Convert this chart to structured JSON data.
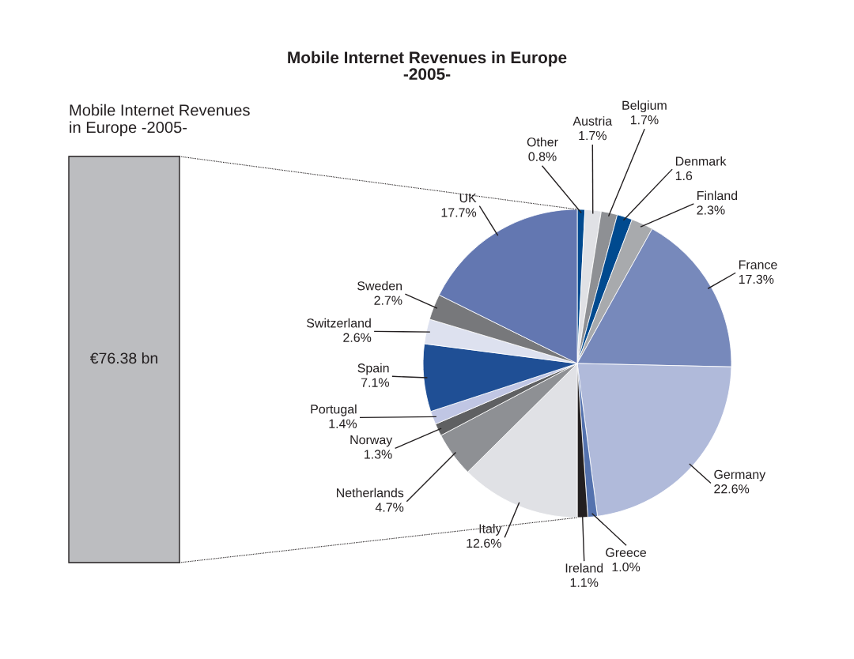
{
  "chart_data": {
    "type": "pie",
    "title": "Mobile Internet Revenues in Europe\n-2005-",
    "categories": [
      "Other",
      "Austria",
      "Belgium",
      "Denmark",
      "Finland",
      "France",
      "Germany",
      "Greece",
      "Ireland",
      "Italy",
      "Netherlands",
      "Norway",
      "Portugal",
      "Spain",
      "Switzerland",
      "Sweden",
      "UK"
    ],
    "values": [
      0.8,
      1.7,
      1.7,
      1.6,
      2.3,
      17.3,
      22.6,
      1.0,
      1.1,
      12.6,
      4.7,
      1.3,
      1.4,
      7.1,
      2.6,
      2.7,
      17.7
    ],
    "value_labels": [
      "0.8%",
      "1.7%",
      "1.7%",
      "1.6",
      "2.3%",
      "17.3%",
      "22.6%",
      "1.0%",
      "1.1%",
      "12.6%",
      "4.7%",
      "1.3%",
      "1.4%",
      "7.1%",
      "2.6%",
      "2.7%",
      "17.7%"
    ],
    "colors": [
      "#004a8f",
      "#e0e1e5",
      "#8e9094",
      "#004a8f",
      "#a8aaad",
      "#7789bb",
      "#b0bada",
      "#5472ae",
      "#231f20",
      "#e0e1e5",
      "#8e9094",
      "#5f6062",
      "#c0c6e4",
      "#1f4f95",
      "#dde1ef",
      "#77787b",
      "#6377b1"
    ],
    "annotations": [
      "Mobile Internet Revenues\nin Europe -2005-",
      "€76.38 bn"
    ]
  }
}
